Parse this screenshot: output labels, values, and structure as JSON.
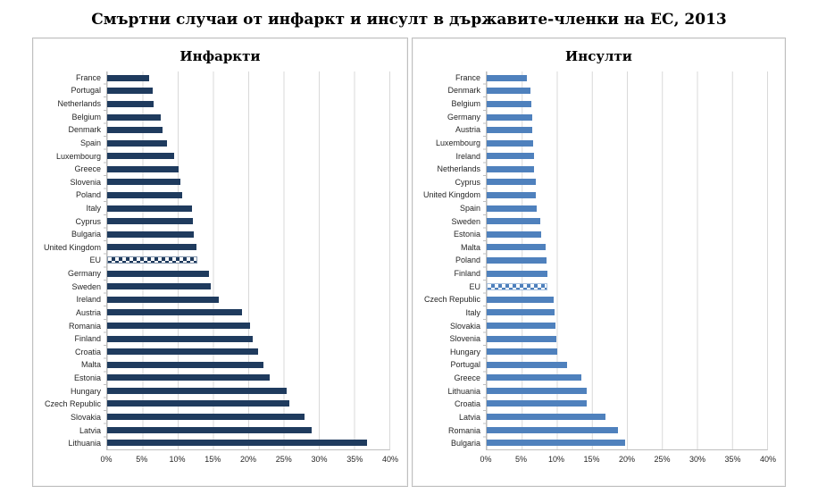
{
  "page_title": "Смъртни случаи от инфаркт и инсулт в държавите-членки на ЕС, 2013",
  "colors": {
    "infarct_bar": "#1F3B5E",
    "infarct_bar_light": "#8496AC",
    "stroke_bar": "#4F81BD",
    "stroke_bar_light": "#A7C0DE",
    "gridline": "#D9D9D9",
    "axis_line": "#BFBFBF",
    "panel_border": "#BFBFBF"
  },
  "chart_data": [
    {
      "type": "bar",
      "orientation": "horizontal",
      "title": "Инфаркти",
      "unit": "%",
      "xlim": [
        0,
        40
      ],
      "x_ticks": [
        "0%",
        "5%",
        "10%",
        "15%",
        "20%",
        "25%",
        "30%",
        "35%",
        "40%"
      ],
      "grid": true,
      "legend": "none",
      "highlight_category": "EU",
      "categories": [
        "France",
        "Portugal",
        "Netherlands",
        "Belgium",
        "Denmark",
        "Spain",
        "Luxembourg",
        "Greece",
        "Slovenia",
        "Poland",
        "Italy",
        "Cyprus",
        "Bulgaria",
        "United Kingdom",
        "EU",
        "Germany",
        "Sweden",
        "Ireland",
        "Austria",
        "Romania",
        "Finland",
        "Croatia",
        "Malta",
        "Estonia",
        "Hungary",
        "Czech Republic",
        "Slovakia",
        "Latvia",
        "Lithuania"
      ],
      "values": [
        5.9,
        6.4,
        6.6,
        7.6,
        7.9,
        8.5,
        9.5,
        10.1,
        10.4,
        10.6,
        12.0,
        12.2,
        12.3,
        12.7,
        12.8,
        14.4,
        14.7,
        15.8,
        19.1,
        20.2,
        20.6,
        21.4,
        22.2,
        23.1,
        25.4,
        25.8,
        28.0,
        29.0,
        36.8
      ]
    },
    {
      "type": "bar",
      "orientation": "horizontal",
      "title": "Инсулти",
      "unit": "%",
      "xlim": [
        0,
        40
      ],
      "x_ticks": [
        "0%",
        "5%",
        "10%",
        "15%",
        "20%",
        "25%",
        "30%",
        "35%",
        "40%"
      ],
      "grid": true,
      "legend": "none",
      "highlight_category": "EU",
      "categories": [
        "France",
        "Denmark",
        "Belgium",
        "Germany",
        "Austria",
        "Luxembourg",
        "Ireland",
        "Netherlands",
        "Cyprus",
        "United Kingdom",
        "Spain",
        "Sweden",
        "Estonia",
        "Malta",
        "Poland",
        "Finland",
        "EU",
        "Czech Republic",
        "Italy",
        "Slovakia",
        "Slovenia",
        "Hungary",
        "Portugal",
        "Greece",
        "Lithuania",
        "Croatia",
        "Latvia",
        "Romania",
        "Bulgaria"
      ],
      "values": [
        5.7,
        6.3,
        6.4,
        6.5,
        6.5,
        6.6,
        6.7,
        6.7,
        7.0,
        7.0,
        7.1,
        7.7,
        7.8,
        8.4,
        8.5,
        8.6,
        8.6,
        9.5,
        9.7,
        9.8,
        9.9,
        10.1,
        11.5,
        13.5,
        14.3,
        14.3,
        17.0,
        18.7,
        19.7
      ]
    }
  ]
}
